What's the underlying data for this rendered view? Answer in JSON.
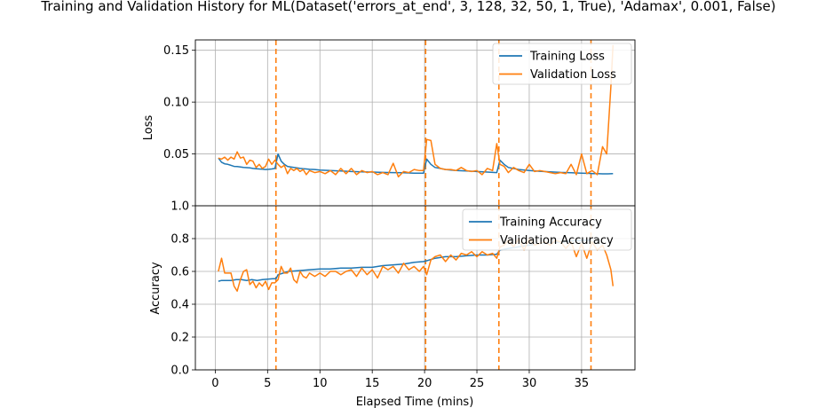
{
  "chart_data": {
    "type": "line",
    "title": "Training and Validation History for ML(Dataset('errors_at_end', 3, 128, 32, 50, 1, True), 'Adamax', 0.001, False)",
    "xlabel": "Elapsed Time (mins)",
    "xlim": [
      -1.9,
      40.1
    ],
    "xticks": [
      0,
      5,
      10,
      15,
      20,
      25,
      30,
      35
    ],
    "xtick_labels": [
      "0",
      "5",
      "10",
      "15",
      "20",
      "25",
      "30",
      "35"
    ],
    "grid": true,
    "vertical_dashed_lines": [
      5.8,
      20.1,
      27.1,
      35.9
    ],
    "colors": {
      "training": "#1f77b4",
      "validation": "#ff7f0e",
      "grid": "#b0b0b0"
    },
    "subplots": [
      {
        "ylabel": "Loss",
        "ylim": [
          0.0,
          0.16
        ],
        "yticks": [
          0.05,
          0.1,
          0.15
        ],
        "ytick_labels": [
          "0.05",
          "0.10",
          "0.15"
        ],
        "legend_position": "upper right",
        "series": [
          {
            "name": "Training Loss",
            "x": [
              0.3,
              0.6,
              0.9,
              1.2,
              1.5,
              1.8,
              2.1,
              2.4,
              2.7,
              3.0,
              3.3,
              3.6,
              3.9,
              4.2,
              4.5,
              4.8,
              5.1,
              5.4,
              5.7,
              6.0,
              6.3,
              6.6,
              6.9,
              7.2,
              7.5,
              7.8,
              8.1,
              8.4,
              8.7,
              9.0,
              9.5,
              10.0,
              11.0,
              12.0,
              13.0,
              14.0,
              15.0,
              16.0,
              17.0,
              18.0,
              19.0,
              19.9,
              20.2,
              20.6,
              21.0,
              21.5,
              22.0,
              23.0,
              24.0,
              25.0,
              26.0,
              26.9,
              27.2,
              27.6,
              28.0,
              29.0,
              30.0,
              31.0,
              32.0,
              33.0,
              34.0,
              35.0,
              35.8,
              36.1,
              36.5,
              37.0,
              37.5,
              38.0
            ],
            "values": [
              0.046,
              0.042,
              0.0405,
              0.04,
              0.039,
              0.038,
              0.0378,
              0.0375,
              0.037,
              0.0368,
              0.0365,
              0.036,
              0.0358,
              0.0355,
              0.0353,
              0.035,
              0.0352,
              0.0355,
              0.036,
              0.05,
              0.043,
              0.04,
              0.038,
              0.0375,
              0.037,
              0.0365,
              0.036,
              0.0358,
              0.0355,
              0.0352,
              0.035,
              0.0345,
              0.034,
              0.0335,
              0.033,
              0.0328,
              0.0325,
              0.0322,
              0.032,
              0.0318,
              0.0315,
              0.0315,
              0.045,
              0.04,
              0.037,
              0.036,
              0.035,
              0.034,
              0.0335,
              0.033,
              0.0325,
              0.032,
              0.044,
              0.04,
              0.037,
              0.035,
              0.034,
              0.0333,
              0.0328,
              0.0322,
              0.0318,
              0.0315,
              0.0312,
              0.031,
              0.031,
              0.0308,
              0.0308,
              0.031
            ]
          },
          {
            "name": "Validation Loss",
            "x": [
              0.3,
              0.6,
              0.9,
              1.2,
              1.5,
              1.8,
              2.1,
              2.4,
              2.7,
              3.0,
              3.3,
              3.6,
              3.9,
              4.2,
              4.5,
              4.8,
              5.1,
              5.4,
              5.7,
              6.0,
              6.3,
              6.6,
              6.9,
              7.2,
              7.5,
              7.8,
              8.1,
              8.4,
              8.7,
              9.0,
              9.5,
              10.0,
              10.5,
              11.0,
              11.5,
              12.0,
              12.5,
              13.0,
              13.5,
              14.0,
              14.5,
              15.0,
              15.5,
              16.0,
              16.5,
              17.0,
              17.5,
              18.0,
              18.5,
              19.0,
              19.5,
              19.9,
              20.2,
              20.6,
              21.0,
              21.5,
              22.0,
              22.5,
              23.0,
              23.5,
              24.0,
              24.5,
              25.0,
              25.5,
              26.0,
              26.5,
              26.9,
              27.2,
              27.6,
              28.0,
              28.5,
              29.0,
              29.5,
              30.0,
              30.5,
              31.0,
              31.5,
              32.0,
              32.5,
              33.0,
              33.5,
              34.0,
              34.5,
              35.0,
              35.5,
              36.0,
              36.5,
              37.0,
              37.4,
              37.8,
              38.0
            ],
            "values": [
              0.046,
              0.045,
              0.047,
              0.044,
              0.047,
              0.045,
              0.052,
              0.046,
              0.047,
              0.04,
              0.044,
              0.043,
              0.037,
              0.04,
              0.036,
              0.038,
              0.045,
              0.04,
              0.044,
              0.04,
              0.037,
              0.039,
              0.031,
              0.036,
              0.034,
              0.036,
              0.033,
              0.035,
              0.03,
              0.034,
              0.032,
              0.033,
              0.031,
              0.034,
              0.03,
              0.036,
              0.031,
              0.036,
              0.03,
              0.034,
              0.032,
              0.033,
              0.03,
              0.032,
              0.03,
              0.041,
              0.028,
              0.033,
              0.032,
              0.035,
              0.034,
              0.034,
              0.064,
              0.063,
              0.04,
              0.036,
              0.035,
              0.035,
              0.034,
              0.037,
              0.034,
              0.033,
              0.034,
              0.03,
              0.036,
              0.034,
              0.06,
              0.04,
              0.038,
              0.032,
              0.037,
              0.034,
              0.032,
              0.04,
              0.033,
              0.034,
              0.033,
              0.032,
              0.031,
              0.032,
              0.031,
              0.04,
              0.03,
              0.05,
              0.031,
              0.034,
              0.03,
              0.057,
              0.05,
              0.115,
              0.155
            ]
          }
        ]
      },
      {
        "ylabel": "Accuracy",
        "ylim": [
          0.0,
          1.0
        ],
        "yticks": [
          0.0,
          0.2,
          0.4,
          0.6,
          0.8,
          1.0
        ],
        "ytick_labels": [
          "0.0",
          "0.2",
          "0.4",
          "0.6",
          "0.8",
          "1.0"
        ],
        "legend_position": "upper right",
        "series": [
          {
            "name": "Training Accuracy",
            "x": [
              0.3,
              0.6,
              1.0,
              1.5,
              2.0,
              2.5,
              3.0,
              3.5,
              4.0,
              4.5,
              5.0,
              5.5,
              5.8,
              6.0,
              6.5,
              7.0,
              8.0,
              9.0,
              10.0,
              11.0,
              12.0,
              13.0,
              14.0,
              15.0,
              16.0,
              17.0,
              18.0,
              19.0,
              19.9,
              20.2,
              21.0,
              22.0,
              23.0,
              24.0,
              25.0,
              26.0,
              26.9,
              27.2,
              28.0,
              29.0,
              30.0,
              31.0,
              32.0,
              33.0,
              34.0,
              35.0,
              35.8
            ],
            "values": [
              0.54,
              0.545,
              0.545,
              0.545,
              0.55,
              0.55,
              0.545,
              0.55,
              0.545,
              0.55,
              0.553,
              0.555,
              0.555,
              0.58,
              0.59,
              0.6,
              0.605,
              0.61,
              0.615,
              0.615,
              0.62,
              0.62,
              0.625,
              0.625,
              0.635,
              0.64,
              0.645,
              0.655,
              0.66,
              0.665,
              0.68,
              0.69,
              0.69,
              0.695,
              0.7,
              0.7,
              0.705,
              0.73,
              0.74,
              0.75,
              0.76,
              0.77,
              0.775,
              0.78,
              0.785,
              0.79,
              0.79
            ]
          },
          {
            "name": "Validation Accuracy",
            "x": [
              0.3,
              0.6,
              0.9,
              1.2,
              1.5,
              1.8,
              2.1,
              2.4,
              2.7,
              3.0,
              3.3,
              3.6,
              3.9,
              4.2,
              4.5,
              4.8,
              5.1,
              5.4,
              5.7,
              6.0,
              6.3,
              6.6,
              6.9,
              7.2,
              7.5,
              7.8,
              8.1,
              8.4,
              8.7,
              9.0,
              9.5,
              10.0,
              10.5,
              11.0,
              11.5,
              12.0,
              12.5,
              13.0,
              13.5,
              14.0,
              14.5,
              15.0,
              15.5,
              16.0,
              16.5,
              17.0,
              17.5,
              18.0,
              18.5,
              19.0,
              19.5,
              19.9,
              20.2,
              20.6,
              21.0,
              21.5,
              22.0,
              22.5,
              23.0,
              23.5,
              24.0,
              24.5,
              25.0,
              25.5,
              26.0,
              26.5,
              26.9,
              27.2,
              27.6,
              28.0,
              28.5,
              29.0,
              29.5,
              30.0,
              30.5,
              31.0,
              31.5,
              32.0,
              32.5,
              33.0,
              33.5,
              34.0,
              34.5,
              35.0,
              35.5,
              36.0,
              36.5,
              37.0,
              37.4,
              37.8,
              38.0
            ],
            "values": [
              0.6,
              0.68,
              0.59,
              0.59,
              0.59,
              0.51,
              0.48,
              0.55,
              0.6,
              0.61,
              0.52,
              0.54,
              0.5,
              0.53,
              0.51,
              0.54,
              0.49,
              0.53,
              0.53,
              0.55,
              0.63,
              0.59,
              0.59,
              0.62,
              0.55,
              0.53,
              0.6,
              0.57,
              0.56,
              0.59,
              0.57,
              0.59,
              0.57,
              0.6,
              0.6,
              0.58,
              0.6,
              0.61,
              0.57,
              0.62,
              0.58,
              0.61,
              0.56,
              0.63,
              0.61,
              0.63,
              0.59,
              0.65,
              0.61,
              0.63,
              0.6,
              0.63,
              0.58,
              0.67,
              0.69,
              0.7,
              0.66,
              0.7,
              0.67,
              0.71,
              0.7,
              0.72,
              0.69,
              0.72,
              0.7,
              0.71,
              0.68,
              0.75,
              0.76,
              0.79,
              0.75,
              0.8,
              0.73,
              0.8,
              0.76,
              0.77,
              0.78,
              0.76,
              0.79,
              0.78,
              0.74,
              0.78,
              0.69,
              0.77,
              0.68,
              0.78,
              0.73,
              0.76,
              0.7,
              0.61,
              0.51
            ]
          }
        ]
      }
    ]
  }
}
